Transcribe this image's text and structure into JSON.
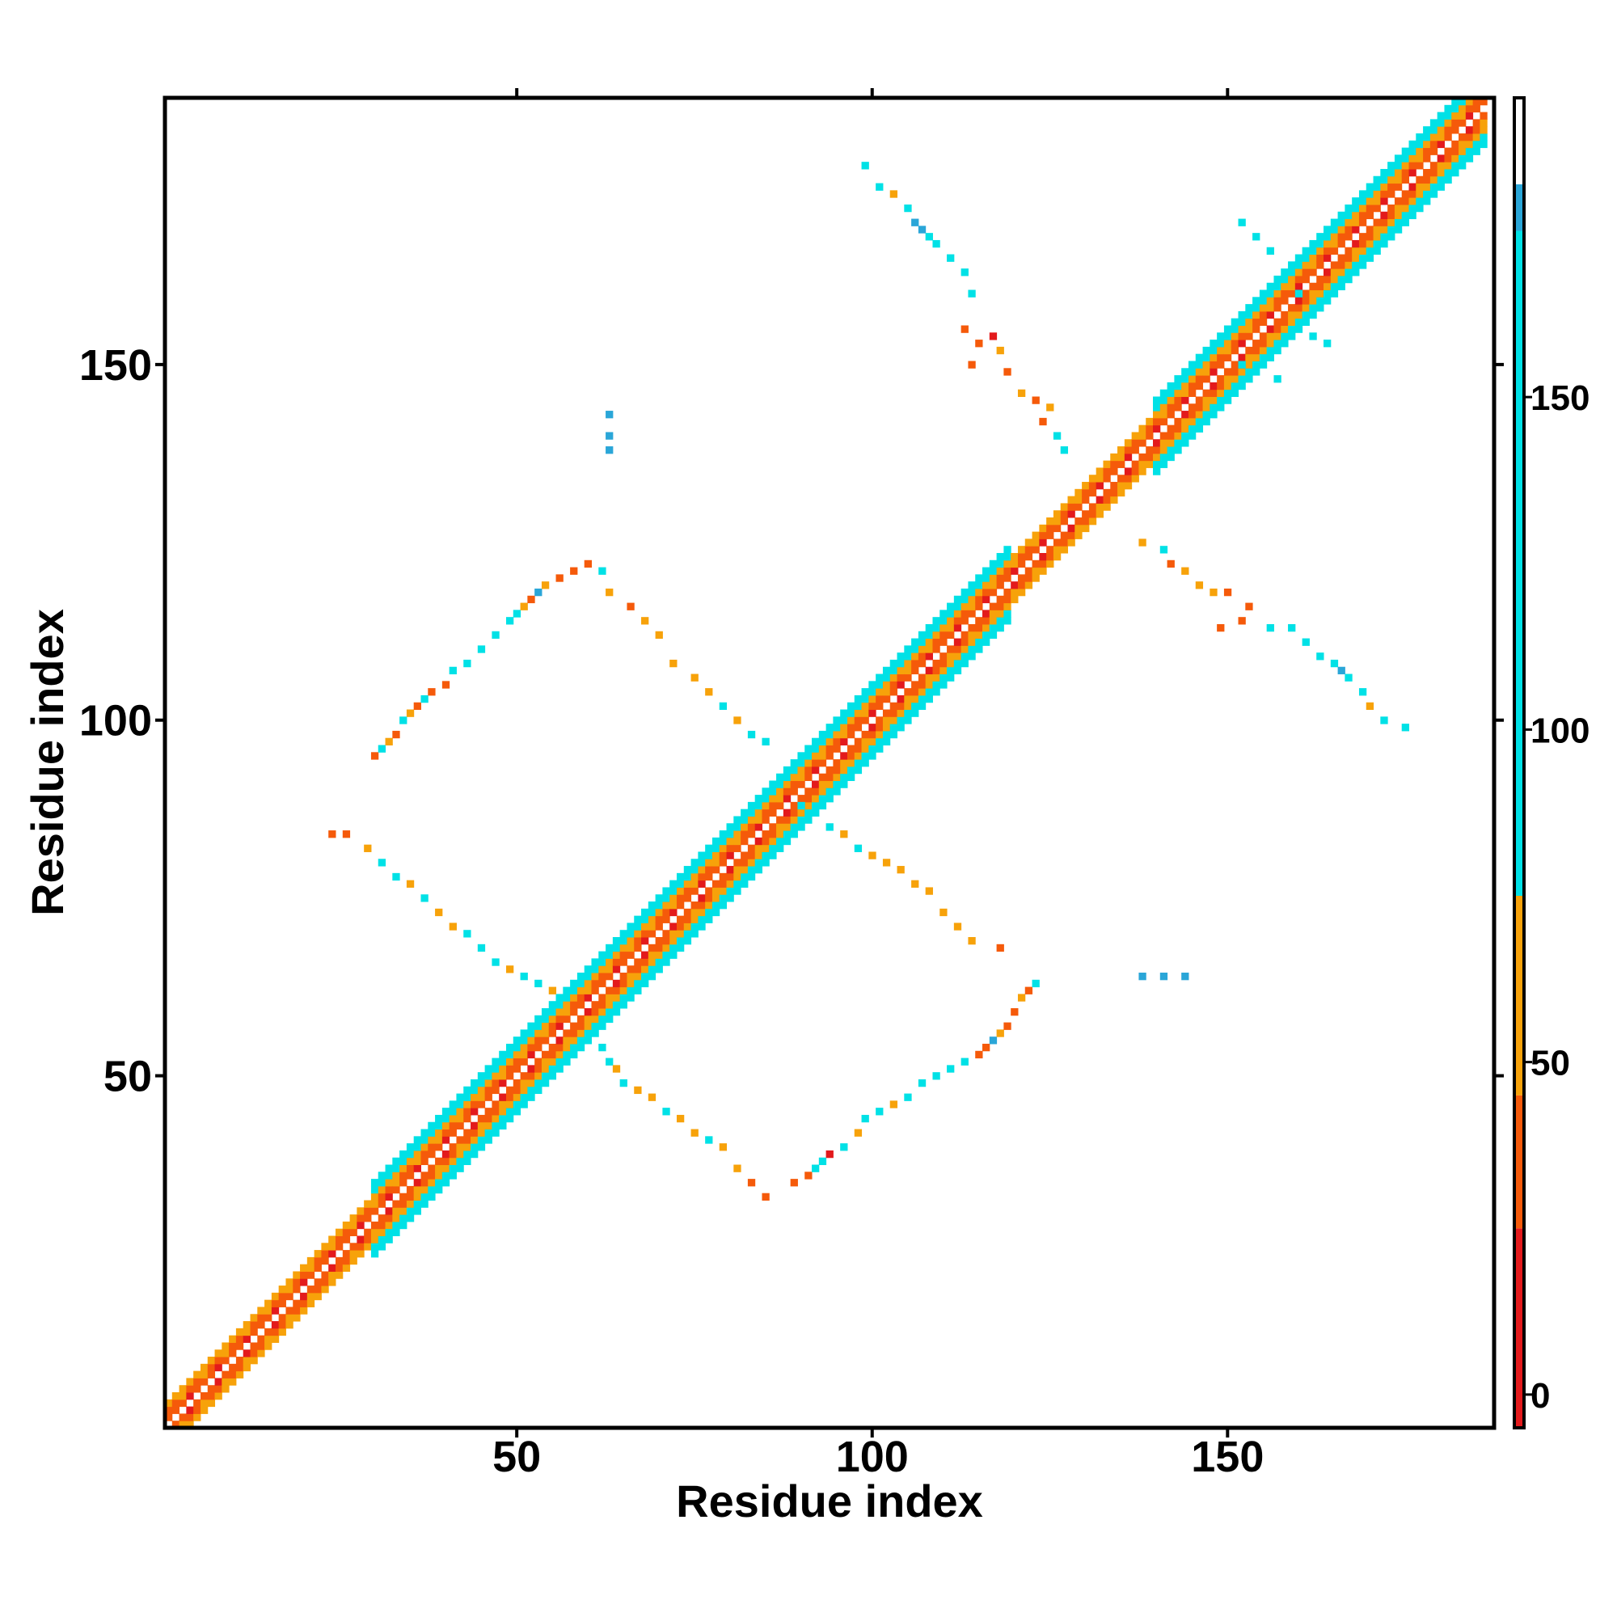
{
  "chart_data": {
    "type": "heatmap",
    "title": "",
    "xlabel": "Residue index",
    "ylabel": "Residue index",
    "xlim": [
      1,
      187
    ],
    "ylim": [
      1,
      187
    ],
    "x_ticks": [
      50,
      100,
      150
    ],
    "y_ticks": [
      50,
      100,
      150
    ],
    "grid": false,
    "colorbar": {
      "ticks": [
        0,
        50,
        100,
        150
      ],
      "range": [
        -5,
        195
      ],
      "bins": [
        {
          "from": -5,
          "to": 25,
          "color": "#e31a1c"
        },
        {
          "from": 25,
          "to": 45,
          "color": "#f55a0a"
        },
        {
          "from": 45,
          "to": 75,
          "color": "#f7a20a"
        },
        {
          "from": 75,
          "to": 175,
          "color": "#00e1e6"
        },
        {
          "from": 175,
          "to": 182,
          "color": "#2aa6d8"
        },
        {
          "from": 182,
          "to": 195,
          "color": "#ffffff"
        }
      ]
    },
    "diagonal_band": {
      "segments": [
        {
          "from": 1,
          "to": 30,
          "half_width": 3
        },
        {
          "from": 30,
          "to": 60,
          "half_width": 5
        },
        {
          "from": 60,
          "to": 90,
          "half_width": 5
        },
        {
          "from": 90,
          "to": 120,
          "half_width": 5
        },
        {
          "from": 120,
          "to": 140,
          "half_width": 3
        },
        {
          "from": 140,
          "to": 187,
          "half_width": 5
        }
      ]
    },
    "contacts": [
      {
        "x": 30,
        "y": 95,
        "v": 25
      },
      {
        "x": 31,
        "y": 96,
        "v": 110
      },
      {
        "x": 32,
        "y": 97,
        "v": 45
      },
      {
        "x": 33,
        "y": 98,
        "v": 30
      },
      {
        "x": 34,
        "y": 100,
        "v": 105
      },
      {
        "x": 35,
        "y": 101,
        "v": 55
      },
      {
        "x": 36,
        "y": 102,
        "v": 35
      },
      {
        "x": 37,
        "y": 103,
        "v": 110
      },
      {
        "x": 38,
        "y": 104,
        "v": 40
      },
      {
        "x": 40,
        "y": 105,
        "v": 30
      },
      {
        "x": 41,
        "y": 107,
        "v": 110
      },
      {
        "x": 43,
        "y": 108,
        "v": 100
      },
      {
        "x": 45,
        "y": 110,
        "v": 105
      },
      {
        "x": 47,
        "y": 112,
        "v": 110
      },
      {
        "x": 49,
        "y": 114,
        "v": 110
      },
      {
        "x": 50,
        "y": 115,
        "v": 105
      },
      {
        "x": 51,
        "y": 116,
        "v": 60
      },
      {
        "x": 52,
        "y": 117,
        "v": 40
      },
      {
        "x": 53,
        "y": 118,
        "v": 175
      },
      {
        "x": 54,
        "y": 119,
        "v": 45
      },
      {
        "x": 56,
        "y": 120,
        "v": 40
      },
      {
        "x": 58,
        "y": 121,
        "v": 35
      },
      {
        "x": 60,
        "y": 122,
        "v": 30
      },
      {
        "x": 62,
        "y": 121,
        "v": 110
      },
      {
        "x": 63,
        "y": 118,
        "v": 50
      },
      {
        "x": 66,
        "y": 116,
        "v": 35
      },
      {
        "x": 68,
        "y": 114,
        "v": 60
      },
      {
        "x": 70,
        "y": 112,
        "v": 55
      },
      {
        "x": 72,
        "y": 108,
        "v": 60
      },
      {
        "x": 75,
        "y": 106,
        "v": 50
      },
      {
        "x": 77,
        "y": 104,
        "v": 45
      },
      {
        "x": 79,
        "y": 102,
        "v": 110
      },
      {
        "x": 81,
        "y": 100,
        "v": 60
      },
      {
        "x": 83,
        "y": 98,
        "v": 110
      },
      {
        "x": 85,
        "y": 97,
        "v": 105
      },
      {
        "x": 24,
        "y": 84,
        "v": 30
      },
      {
        "x": 26,
        "y": 84,
        "v": 40
      },
      {
        "x": 29,
        "y": 82,
        "v": 55
      },
      {
        "x": 31,
        "y": 80,
        "v": 110
      },
      {
        "x": 33,
        "y": 78,
        "v": 105
      },
      {
        "x": 35,
        "y": 77,
        "v": 60
      },
      {
        "x": 37,
        "y": 75,
        "v": 110
      },
      {
        "x": 39,
        "y": 73,
        "v": 45
      },
      {
        "x": 41,
        "y": 71,
        "v": 60
      },
      {
        "x": 43,
        "y": 70,
        "v": 110
      },
      {
        "x": 45,
        "y": 68,
        "v": 105
      },
      {
        "x": 47,
        "y": 66,
        "v": 110
      },
      {
        "x": 49,
        "y": 65,
        "v": 60
      },
      {
        "x": 51,
        "y": 64,
        "v": 105
      },
      {
        "x": 53,
        "y": 63,
        "v": 110
      },
      {
        "x": 55,
        "y": 62,
        "v": 50
      },
      {
        "x": 63,
        "y": 143,
        "v": 175
      },
      {
        "x": 63,
        "y": 140,
        "v": 180
      },
      {
        "x": 63,
        "y": 138,
        "v": 175
      },
      {
        "x": 62,
        "y": 54,
        "v": 110
      },
      {
        "x": 63,
        "y": 52,
        "v": 105
      },
      {
        "x": 64,
        "y": 51,
        "v": 60
      },
      {
        "x": 65,
        "y": 49,
        "v": 110
      },
      {
        "x": 67,
        "y": 48,
        "v": 45
      },
      {
        "x": 69,
        "y": 47,
        "v": 60
      },
      {
        "x": 71,
        "y": 45,
        "v": 110
      },
      {
        "x": 73,
        "y": 44,
        "v": 55
      },
      {
        "x": 75,
        "y": 42,
        "v": 60
      },
      {
        "x": 77,
        "y": 41,
        "v": 110
      },
      {
        "x": 79,
        "y": 40,
        "v": 45
      },
      {
        "x": 81,
        "y": 37,
        "v": 60
      },
      {
        "x": 83,
        "y": 35,
        "v": 40
      },
      {
        "x": 85,
        "y": 33,
        "v": 30
      },
      {
        "x": 89,
        "y": 35,
        "v": 30
      },
      {
        "x": 91,
        "y": 36,
        "v": 25
      },
      {
        "x": 92,
        "y": 37,
        "v": 110
      },
      {
        "x": 93,
        "y": 38,
        "v": 105
      },
      {
        "x": 94,
        "y": 39,
        "v": 20
      },
      {
        "x": 96,
        "y": 40,
        "v": 110
      },
      {
        "x": 98,
        "y": 42,
        "v": 55
      },
      {
        "x": 99,
        "y": 44,
        "v": 110
      },
      {
        "x": 101,
        "y": 45,
        "v": 105
      },
      {
        "x": 103,
        "y": 46,
        "v": 60
      },
      {
        "x": 105,
        "y": 47,
        "v": 110
      },
      {
        "x": 107,
        "y": 49,
        "v": 105
      },
      {
        "x": 109,
        "y": 50,
        "v": 110
      },
      {
        "x": 111,
        "y": 51,
        "v": 110
      },
      {
        "x": 113,
        "y": 52,
        "v": 105
      },
      {
        "x": 115,
        "y": 53,
        "v": 25
      },
      {
        "x": 116,
        "y": 54,
        "v": 40
      },
      {
        "x": 117,
        "y": 55,
        "v": 175
      },
      {
        "x": 118,
        "y": 56,
        "v": 45
      },
      {
        "x": 119,
        "y": 57,
        "v": 35
      },
      {
        "x": 120,
        "y": 59,
        "v": 40
      },
      {
        "x": 121,
        "y": 61,
        "v": 45
      },
      {
        "x": 122,
        "y": 62,
        "v": 30
      },
      {
        "x": 123,
        "y": 63,
        "v": 110
      },
      {
        "x": 118,
        "y": 68,
        "v": 25
      },
      {
        "x": 90,
        "y": 88,
        "v": 110
      },
      {
        "x": 92,
        "y": 87,
        "v": 105
      },
      {
        "x": 94,
        "y": 85,
        "v": 110
      },
      {
        "x": 96,
        "y": 84,
        "v": 55
      },
      {
        "x": 98,
        "y": 82,
        "v": 110
      },
      {
        "x": 100,
        "y": 81,
        "v": 60
      },
      {
        "x": 102,
        "y": 80,
        "v": 45
      },
      {
        "x": 104,
        "y": 79,
        "v": 60
      },
      {
        "x": 106,
        "y": 77,
        "v": 50
      },
      {
        "x": 108,
        "y": 76,
        "v": 45
      },
      {
        "x": 110,
        "y": 73,
        "v": 60
      },
      {
        "x": 112,
        "y": 71,
        "v": 55
      },
      {
        "x": 114,
        "y": 69,
        "v": 50
      },
      {
        "x": 138,
        "y": 64,
        "v": 175
      },
      {
        "x": 141,
        "y": 64,
        "v": 180
      },
      {
        "x": 144,
        "y": 64,
        "v": 175
      },
      {
        "x": 99,
        "y": 178,
        "v": 105
      },
      {
        "x": 101,
        "y": 175,
        "v": 110
      },
      {
        "x": 103,
        "y": 174,
        "v": 55
      },
      {
        "x": 105,
        "y": 172,
        "v": 110
      },
      {
        "x": 106,
        "y": 170,
        "v": 175
      },
      {
        "x": 107,
        "y": 169,
        "v": 180
      },
      {
        "x": 108,
        "y": 168,
        "v": 105
      },
      {
        "x": 109,
        "y": 167,
        "v": 110
      },
      {
        "x": 111,
        "y": 165,
        "v": 105
      },
      {
        "x": 113,
        "y": 163,
        "v": 110
      },
      {
        "x": 114,
        "y": 160,
        "v": 105
      },
      {
        "x": 113,
        "y": 155,
        "v": 30
      },
      {
        "x": 115,
        "y": 153,
        "v": 40
      },
      {
        "x": 117,
        "y": 154,
        "v": 20
      },
      {
        "x": 118,
        "y": 152,
        "v": 55
      },
      {
        "x": 114,
        "y": 150,
        "v": 40
      },
      {
        "x": 119,
        "y": 149,
        "v": 30
      },
      {
        "x": 121,
        "y": 146,
        "v": 45
      },
      {
        "x": 123,
        "y": 145,
        "v": 35
      },
      {
        "x": 125,
        "y": 144,
        "v": 55
      },
      {
        "x": 124,
        "y": 142,
        "v": 40
      },
      {
        "x": 126,
        "y": 140,
        "v": 110
      },
      {
        "x": 127,
        "y": 138,
        "v": 105
      },
      {
        "x": 138,
        "y": 125,
        "v": 55
      },
      {
        "x": 141,
        "y": 124,
        "v": 110
      },
      {
        "x": 142,
        "y": 122,
        "v": 40
      },
      {
        "x": 144,
        "y": 121,
        "v": 60
      },
      {
        "x": 146,
        "y": 119,
        "v": 45
      },
      {
        "x": 148,
        "y": 118,
        "v": 55
      },
      {
        "x": 150,
        "y": 118,
        "v": 40
      },
      {
        "x": 153,
        "y": 116,
        "v": 25
      },
      {
        "x": 152,
        "y": 114,
        "v": 35
      },
      {
        "x": 149,
        "y": 113,
        "v": 40
      },
      {
        "x": 156,
        "y": 113,
        "v": 110
      },
      {
        "x": 159,
        "y": 113,
        "v": 105
      },
      {
        "x": 161,
        "y": 111,
        "v": 110
      },
      {
        "x": 163,
        "y": 109,
        "v": 105
      },
      {
        "x": 165,
        "y": 108,
        "v": 110
      },
      {
        "x": 166,
        "y": 107,
        "v": 175
      },
      {
        "x": 167,
        "y": 106,
        "v": 110
      },
      {
        "x": 169,
        "y": 104,
        "v": 105
      },
      {
        "x": 170,
        "y": 102,
        "v": 55
      },
      {
        "x": 172,
        "y": 100,
        "v": 110
      },
      {
        "x": 175,
        "y": 99,
        "v": 105
      },
      {
        "x": 152,
        "y": 170,
        "v": 110
      },
      {
        "x": 154,
        "y": 168,
        "v": 105
      },
      {
        "x": 156,
        "y": 166,
        "v": 110
      },
      {
        "x": 160,
        "y": 160,
        "v": 105
      },
      {
        "x": 162,
        "y": 154,
        "v": 110
      },
      {
        "x": 164,
        "y": 153,
        "v": 105
      },
      {
        "x": 157,
        "y": 148,
        "v": 110
      },
      {
        "x": 152,
        "y": 150,
        "v": 105
      }
    ]
  }
}
